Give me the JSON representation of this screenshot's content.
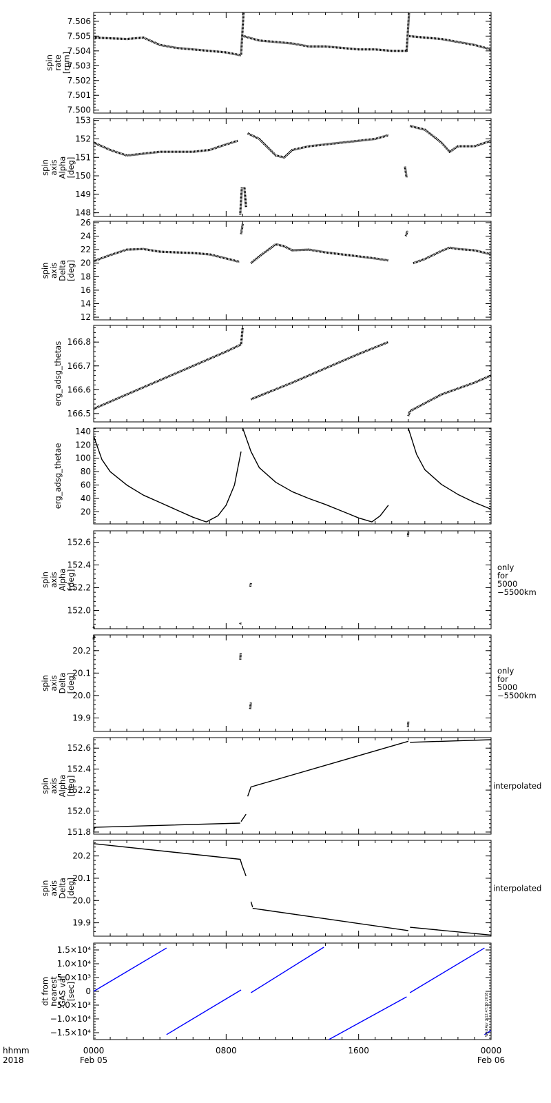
{
  "x_axis": {
    "hhmm_label": "hhmm",
    "year_label": "2018",
    "ticks": [
      {
        "hour": 0,
        "label": "0000",
        "date": "Feb 05"
      },
      {
        "hour": 8,
        "label": "0800",
        "date": ""
      },
      {
        "hour": 16,
        "label": "1600",
        "date": ""
      },
      {
        "hour": 24,
        "label": "0000",
        "date": "Feb 06"
      }
    ],
    "range_hours": [
      0,
      24
    ]
  },
  "timestamp": "Wed Apr  2 12:47:30 2018",
  "colors": {
    "data": "#000000",
    "dt_series": "#0000ff",
    "axes": "#000000"
  },
  "chart_data": [
    {
      "type": "scatter",
      "ylabel": [
        "spin",
        "rate",
        "[rpm]"
      ],
      "ylim": [
        7.4998,
        7.5066
      ],
      "yticks": [
        7.5,
        7.501,
        7.502,
        7.503,
        7.504,
        7.505,
        7.506
      ],
      "ytick_labels": [
        "7.500",
        "7.501",
        "7.502",
        "7.503",
        "7.504",
        "7.505",
        "7.506"
      ],
      "side_label": [],
      "series": [
        {
          "x": [
            0.0,
            2.0,
            3.0,
            4.0,
            5.0,
            6.0,
            7.0,
            8.0,
            8.9,
            9.05
          ],
          "y": [
            7.5049,
            7.5048,
            7.5049,
            7.5044,
            7.5042,
            7.5041,
            7.504,
            7.5039,
            7.5037,
            7.5066
          ]
        },
        {
          "x": [
            9.05,
            10.0,
            11.0,
            12.0,
            13.0,
            14.0,
            15.0,
            16.0,
            17.0,
            18.0,
            18.9,
            19.05
          ],
          "y": [
            7.505,
            7.5047,
            7.5046,
            7.5045,
            7.5043,
            7.5043,
            7.5042,
            7.5041,
            7.5041,
            7.504,
            7.504,
            7.5066
          ]
        },
        {
          "x": [
            19.05,
            20.0,
            21.0,
            22.0,
            23.0,
            24.0
          ],
          "y": [
            7.505,
            7.5049,
            7.5048,
            7.5046,
            7.5044,
            7.5041
          ]
        }
      ]
    },
    {
      "type": "scatter",
      "ylabel": [
        "spin",
        "axis",
        "Alpha",
        "[deg]"
      ],
      "ylim": [
        147.8,
        153.1
      ],
      "yticks": [
        148,
        149,
        150,
        151,
        152,
        153
      ],
      "ytick_labels": [
        "148",
        "149",
        "150",
        "151",
        "152",
        "153"
      ],
      "side_label": [],
      "series": [
        {
          "x": [
            0.0,
            1.0,
            2.0,
            3.0,
            4.0,
            5.0,
            6.0,
            7.0,
            8.0,
            8.7
          ],
          "y": [
            151.8,
            151.4,
            151.1,
            151.2,
            151.3,
            151.3,
            151.3,
            151.4,
            151.7,
            151.9
          ]
        },
        {
          "x": [
            8.85,
            8.95
          ],
          "y": [
            147.9,
            149.4
          ]
        },
        {
          "x": [
            9.1,
            9.2
          ],
          "y": [
            149.4,
            148.3
          ]
        },
        {
          "x": [
            9.3,
            10.0,
            11.0,
            11.5,
            12.0,
            13.0,
            14.0,
            15.0,
            16.0,
            17.0,
            17.8
          ],
          "y": [
            152.3,
            152.0,
            151.1,
            151.0,
            151.4,
            151.6,
            151.7,
            151.8,
            151.9,
            152.0,
            152.2
          ]
        },
        {
          "x": [
            18.8,
            18.9
          ],
          "y": [
            150.5,
            149.9
          ]
        },
        {
          "x": [
            19.1,
            20.0,
            21.0,
            21.5,
            22.0,
            23.0,
            24.0
          ],
          "y": [
            152.7,
            152.5,
            151.8,
            151.3,
            151.6,
            151.6,
            151.9
          ]
        }
      ]
    },
    {
      "type": "scatter",
      "ylabel": [
        "spin",
        "axis",
        "Delta",
        "[deg]"
      ],
      "ylim": [
        11.6,
        26.2
      ],
      "yticks": [
        12,
        14,
        16,
        18,
        20,
        22,
        24,
        26
      ],
      "ytick_labels": [
        "12",
        "14",
        "16",
        "18",
        "20",
        "22",
        "24",
        "26"
      ],
      "side_label": [],
      "series": [
        {
          "x": [
            0.0,
            1.0,
            2.0,
            3.0,
            4.0,
            5.0,
            6.0,
            7.0,
            8.0,
            8.8
          ],
          "y": [
            20.3,
            21.2,
            22.0,
            22.1,
            21.7,
            21.6,
            21.5,
            21.3,
            20.7,
            20.2
          ]
        },
        {
          "x": [
            8.9,
            9.0
          ],
          "y": [
            24.3,
            25.8
          ]
        },
        {
          "x": [
            9.5,
            10.0,
            11.0,
            11.5,
            12.0,
            13.0,
            14.0,
            15.0,
            16.0,
            17.0,
            17.8
          ],
          "y": [
            20.0,
            21.0,
            22.8,
            22.5,
            21.9,
            22.0,
            21.6,
            21.3,
            21.0,
            20.7,
            20.4
          ]
        },
        {
          "x": [
            18.85,
            18.95
          ],
          "y": [
            24.0,
            24.8
          ]
        },
        {
          "x": [
            19.3,
            20.0,
            21.0,
            21.5,
            22.0,
            23.0,
            24.0
          ],
          "y": [
            20.0,
            20.6,
            21.8,
            22.3,
            22.1,
            21.9,
            21.3
          ]
        }
      ]
    },
    {
      "type": "scatter",
      "ylabel": [
        "erg_adsg_thetas"
      ],
      "ylim": [
        166.465,
        166.87
      ],
      "yticks": [
        166.5,
        166.6,
        166.7,
        166.8
      ],
      "ytick_labels": [
        "166.5",
        "166.6",
        "166.7",
        "166.8"
      ],
      "side_label": [],
      "series": [
        {
          "x": [
            0.0,
            2.0,
            4.0,
            6.0,
            8.0,
            8.9,
            9.0
          ],
          "y": [
            166.52,
            166.58,
            166.64,
            166.7,
            166.76,
            166.79,
            166.86
          ]
        },
        {
          "x": [
            9.5,
            12.0,
            14.0,
            16.0,
            17.8
          ],
          "y": [
            166.56,
            166.63,
            166.69,
            166.75,
            166.8
          ]
        },
        {
          "x": [
            19.0,
            19.1,
            21.0,
            23.0,
            24.0
          ],
          "y": [
            166.49,
            166.51,
            166.58,
            166.63,
            166.66
          ]
        }
      ]
    },
    {
      "type": "line",
      "ylabel": [
        "erg_adsg_thetae"
      ],
      "ylim": [
        2,
        145
      ],
      "yticks": [
        20,
        40,
        60,
        80,
        100,
        120,
        140
      ],
      "ytick_labels": [
        "20",
        "40",
        "60",
        "80",
        "100",
        "120",
        "140"
      ],
      "side_label": [],
      "series": [
        {
          "x": [
            0.0,
            0.5,
            1.0,
            2.0,
            3.0,
            4.0,
            5.0,
            6.0,
            6.8,
            7.5,
            8.0,
            8.5,
            8.9
          ],
          "y": [
            133,
            98,
            80,
            60,
            45,
            34,
            23,
            12,
            5,
            14,
            30,
            60,
            110
          ]
        },
        {
          "x": [
            9.0,
            9.5,
            10.0,
            11.0,
            12.0,
            13.0,
            14.0,
            15.0,
            16.0,
            16.8,
            17.3,
            17.8
          ],
          "y": [
            145,
            110,
            86,
            64,
            50,
            40,
            31,
            21,
            11,
            5,
            14,
            30
          ]
        },
        {
          "x": [
            19.0,
            19.5,
            20.0,
            21.0,
            22.0,
            23.0,
            24.0
          ],
          "y": [
            145,
            106,
            83,
            61,
            46,
            34,
            24
          ]
        }
      ]
    },
    {
      "type": "scatter",
      "ylabel": [
        "spin",
        "axis",
        "Alpha",
        "[deg]"
      ],
      "ylim": [
        151.84,
        152.7
      ],
      "yticks": [
        152.0,
        152.2,
        152.4,
        152.6
      ],
      "ytick_labels": [
        "152.0",
        "152.2",
        "152.4",
        "152.6"
      ],
      "side_label": [
        "only",
        "for",
        "5000",
        "−5500km"
      ],
      "series": [
        {
          "x": [
            0.0,
            0.03
          ],
          "y": [
            151.845,
            151.86
          ]
        },
        {
          "x": [
            8.85,
            8.88
          ],
          "y": [
            151.88,
            151.895
          ]
        },
        {
          "x": [
            9.45,
            9.5
          ],
          "y": [
            152.21,
            152.24
          ]
        },
        {
          "x": [
            18.98,
            19.0
          ],
          "y": [
            152.65,
            152.69
          ]
        }
      ]
    },
    {
      "type": "scatter",
      "ylabel": [
        "spin",
        "axis",
        "Delta",
        "[deg]"
      ],
      "ylim": [
        19.84,
        20.27
      ],
      "yticks": [
        19.9,
        20.0,
        20.1,
        20.2
      ],
      "ytick_labels": [
        "19.9",
        "20.0",
        "20.1",
        "20.2"
      ],
      "side_label": [
        "only",
        "for",
        "5000",
        "−5500km"
      ],
      "series": [
        {
          "x": [
            0.0,
            0.03
          ],
          "y": [
            20.25,
            20.27
          ]
        },
        {
          "x": [
            8.85,
            8.88
          ],
          "y": [
            20.16,
            20.19
          ]
        },
        {
          "x": [
            9.45,
            9.5
          ],
          "y": [
            19.94,
            19.97
          ]
        },
        {
          "x": [
            18.98,
            19.0
          ],
          "y": [
            19.86,
            19.885
          ]
        }
      ]
    },
    {
      "type": "line",
      "ylabel": [
        "spin",
        "axis",
        "Alpha",
        "[deg]"
      ],
      "ylim": [
        151.78,
        152.7
      ],
      "yticks": [
        151.8,
        152.0,
        152.2,
        152.4,
        152.6
      ],
      "ytick_labels": [
        "151.8",
        "152.0",
        "152.2",
        "152.4",
        "152.6"
      ],
      "side_label": [
        "interpolated"
      ],
      "series": [
        {
          "x": [
            0.0,
            0.05,
            8.85
          ],
          "y": [
            151.8,
            151.845,
            151.885
          ]
        },
        {
          "x": [
            8.9,
            9.2
          ],
          "y": [
            151.9,
            151.97
          ]
        },
        {
          "x": [
            9.3,
            9.5,
            19.0
          ],
          "y": [
            152.14,
            152.23,
            152.665
          ]
        },
        {
          "x": [
            19.1,
            24.0
          ],
          "y": [
            152.655,
            152.68
          ]
        }
      ]
    },
    {
      "type": "line",
      "ylabel": [
        "spin",
        "axis",
        "Delta",
        "[deg]"
      ],
      "ylim": [
        19.84,
        20.27
      ],
      "yticks": [
        19.9,
        20.0,
        20.1,
        20.2
      ],
      "ytick_labels": [
        "19.9",
        "20.0",
        "20.1",
        "20.2"
      ],
      "side_label": [
        "interpolated"
      ],
      "series": [
        {
          "x": [
            0.0,
            8.85,
            8.95,
            9.2
          ],
          "y": [
            20.255,
            20.185,
            20.16,
            20.11
          ]
        },
        {
          "x": [
            9.5,
            9.6
          ],
          "y": [
            19.995,
            19.97
          ]
        },
        {
          "x": [
            9.6,
            19.0
          ],
          "y": [
            19.965,
            19.865
          ]
        },
        {
          "x": [
            19.1,
            24.0
          ],
          "y": [
            19.88,
            19.845
          ]
        }
      ]
    },
    {
      "type": "line",
      "ylabel": [
        "dt from",
        "nearest",
        "GAS val",
        "[sec]"
      ],
      "ylim": [
        -17500,
        17500
      ],
      "yticks": [
        -15000,
        -10000,
        -5000,
        0,
        5000,
        10000,
        15000
      ],
      "ytick_labels": [
        "−1.5×10⁴",
        "−1.0×10⁴",
        "−5.0×10³",
        "0",
        "5.0×10³",
        "1.0×10⁴",
        "1.5×10⁴"
      ],
      "side_label": [],
      "color": "blue",
      "series": [
        {
          "x": [
            0.0,
            4.4
          ],
          "y": [
            0,
            15700
          ]
        },
        {
          "x": [
            4.4,
            8.9
          ],
          "y": [
            -15700,
            500
          ]
        },
        {
          "x": [
            9.5,
            13.9
          ],
          "y": [
            -500,
            16000
          ]
        },
        {
          "x": [
            14.2,
            18.9
          ],
          "y": [
            -17500,
            -2000
          ]
        },
        {
          "x": [
            19.1,
            23.6
          ],
          "y": [
            -500,
            15700
          ]
        },
        {
          "x": [
            23.6,
            24.0
          ],
          "y": [
            -15700,
            -14200
          ]
        }
      ]
    }
  ]
}
